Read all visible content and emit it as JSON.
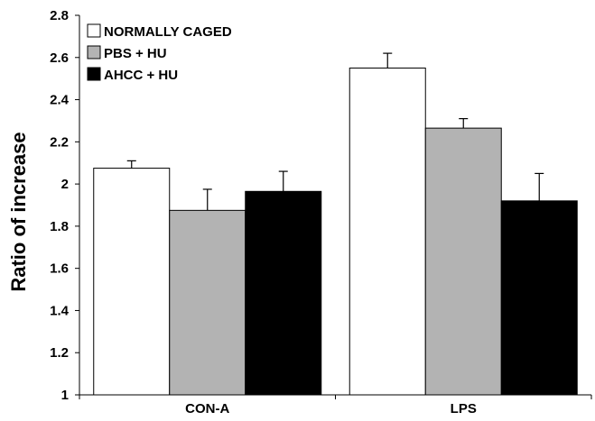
{
  "chart_data": {
    "type": "bar",
    "title": "",
    "xlabel": "",
    "ylabel": "Ratio of increase",
    "ylim": [
      1,
      2.8
    ],
    "yticks": [
      1,
      1.2,
      1.4,
      1.6,
      1.8,
      2,
      2.2,
      2.4,
      2.6,
      2.8
    ],
    "ytick_labels": [
      "1",
      "1.2",
      "1.4",
      "1.6",
      "1.8",
      "2",
      "2.2",
      "2.4",
      "2.6",
      "2.8"
    ],
    "categories": [
      "CON-A",
      "LPS"
    ],
    "series": [
      {
        "name": "NORMALLY CAGED",
        "color": "#ffffff",
        "values": [
          2.075,
          2.55
        ],
        "errors": [
          0.035,
          0.07
        ]
      },
      {
        "name": "PBS + HU",
        "color": "#b3b3b3",
        "values": [
          1.875,
          2.265
        ],
        "errors": [
          0.1,
          0.045
        ]
      },
      {
        "name": "AHCC + HU",
        "color": "#000000",
        "values": [
          1.965,
          1.92
        ],
        "errors": [
          0.095,
          0.13
        ]
      }
    ],
    "legend": "top-left",
    "grid": false
  }
}
